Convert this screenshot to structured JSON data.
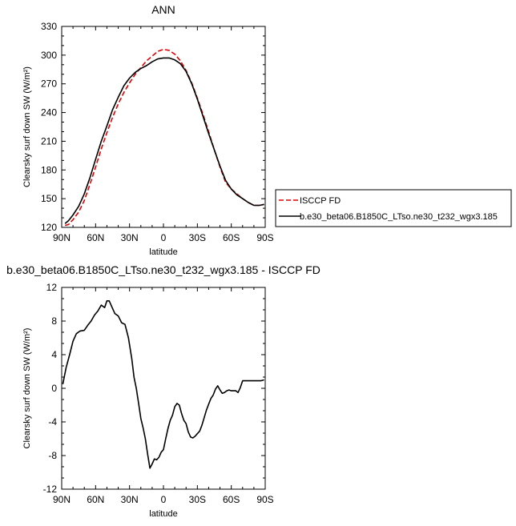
{
  "chart_data": [
    {
      "type": "line",
      "title": "ANN",
      "xlabel": "latitude",
      "ylabel": "Clearsky surf down SW (W/m²)",
      "xlim": [
        90,
        -90
      ],
      "ylim": [
        120,
        330
      ],
      "x_ticks": [
        {
          "value": 90,
          "label": "90N"
        },
        {
          "value": 60,
          "label": "60N"
        },
        {
          "value": 30,
          "label": "30N"
        },
        {
          "value": 0,
          "label": "0"
        },
        {
          "value": -30,
          "label": "30S"
        },
        {
          "value": -60,
          "label": "60S"
        },
        {
          "value": -90,
          "label": "90S"
        }
      ],
      "y_ticks": [
        120,
        150,
        180,
        210,
        240,
        270,
        300,
        330
      ],
      "legend": "right",
      "series": [
        {
          "name": "ISCCP FD",
          "color": "#e00000",
          "dash": true,
          "x": [
            87,
            84,
            80,
            75,
            70,
            65,
            60,
            55,
            50,
            45,
            40,
            35,
            30,
            25,
            20,
            15,
            10,
            5,
            0,
            -5,
            -10,
            -15,
            -20,
            -25,
            -30,
            -35,
            -40,
            -45,
            -50,
            -55,
            -60,
            -65,
            -70,
            -75,
            -80,
            -85,
            -89
          ],
          "y": [
            122,
            123,
            128,
            136,
            148,
            165,
            183,
            202,
            219,
            235,
            249,
            261,
            271,
            280,
            287,
            294,
            299,
            304,
            306,
            305,
            301,
            294,
            284,
            271,
            255,
            238,
            220,
            201,
            183,
            167,
            160,
            155,
            150,
            146,
            143,
            143,
            144
          ]
        },
        {
          "name": "b.e30_beta06.B1850C_LTso.ne30_t232_wgx3.185",
          "color": "#000000",
          "dash": false,
          "x": [
            87,
            84,
            80,
            75,
            70,
            65,
            60,
            55,
            50,
            45,
            40,
            35,
            30,
            25,
            20,
            15,
            10,
            5,
            0,
            -5,
            -10,
            -15,
            -20,
            -25,
            -30,
            -35,
            -40,
            -45,
            -50,
            -55,
            -60,
            -65,
            -70,
            -75,
            -80,
            -85,
            -89
          ],
          "y": [
            124,
            127,
            133,
            142,
            155,
            172,
            191,
            210,
            226,
            243,
            256,
            268,
            276,
            282,
            286,
            289,
            293,
            296,
            297,
            297,
            295,
            291,
            283,
            270,
            254,
            236,
            218,
            201,
            184,
            169,
            160,
            154,
            150,
            146,
            143,
            143,
            144
          ]
        }
      ]
    },
    {
      "type": "line",
      "title": "b.e30_beta06.B1850C_LTso.ne30_t232_wgx3.185 - ISCCP FD",
      "xlabel": "latitude",
      "ylabel": "Clearsky surf down SW (W/m²)",
      "xlim": [
        90,
        -90
      ],
      "ylim": [
        -12,
        12
      ],
      "x_ticks": [
        {
          "value": 90,
          "label": "90N"
        },
        {
          "value": 60,
          "label": "60N"
        },
        {
          "value": 30,
          "label": "30N"
        },
        {
          "value": 0,
          "label": "0"
        },
        {
          "value": -30,
          "label": "30S"
        },
        {
          "value": -60,
          "label": "60S"
        },
        {
          "value": -90,
          "label": "90S"
        }
      ],
      "y_ticks": [
        -12,
        -8,
        -4,
        0,
        4,
        8,
        12
      ],
      "series": [
        {
          "color": "#000000",
          "dash": false,
          "x": [
            89,
            86,
            83,
            80,
            77,
            74,
            70,
            67,
            64,
            61,
            58,
            55,
            52,
            50,
            48,
            45,
            43,
            40,
            37,
            34,
            31,
            28,
            26,
            24,
            22,
            20,
            18,
            16,
            14,
            12,
            10,
            8,
            6,
            4,
            2,
            0,
            -2,
            -4,
            -6,
            -8,
            -10,
            -12,
            -14,
            -16,
            -18,
            -20,
            -22,
            -24,
            -26,
            -28,
            -30,
            -32,
            -34,
            -36,
            -38,
            -40,
            -42,
            -44,
            -46,
            -48,
            -50,
            -52,
            -54,
            -56,
            -58,
            -60,
            -62,
            -64,
            -66,
            -68,
            -70,
            -72,
            -74,
            -76,
            -78,
            -80,
            -82,
            -84,
            -86,
            -89
          ],
          "y": [
            0.5,
            2.5,
            4.0,
            5.6,
            6.5,
            6.8,
            6.9,
            7.5,
            8.0,
            8.7,
            9.2,
            9.9,
            9.6,
            10.4,
            10.4,
            9.5,
            8.9,
            8.6,
            7.8,
            7.6,
            6.0,
            3.5,
            1.3,
            0,
            -1.8,
            -3.6,
            -4.7,
            -6.0,
            -7.8,
            -9.5,
            -9.0,
            -8.4,
            -8.5,
            -8.2,
            -7.6,
            -7.3,
            -6.0,
            -4.8,
            -3.8,
            -3.2,
            -2.2,
            -1.8,
            -2.0,
            -3.0,
            -3.8,
            -4.2,
            -5.2,
            -5.8,
            -5.9,
            -5.7,
            -5.4,
            -5.1,
            -4.4,
            -3.5,
            -2.6,
            -1.9,
            -1.2,
            -0.8,
            -0.1,
            0.3,
            -0.2,
            -0.6,
            -0.5,
            -0.3,
            -0.2,
            -0.3,
            -0.3,
            -0.3,
            -0.5,
            0.1,
            0.9,
            0.9,
            0.9,
            0.9,
            0.9,
            0.9,
            0.9,
            0.9,
            0.9,
            1.0
          ]
        }
      ]
    }
  ]
}
